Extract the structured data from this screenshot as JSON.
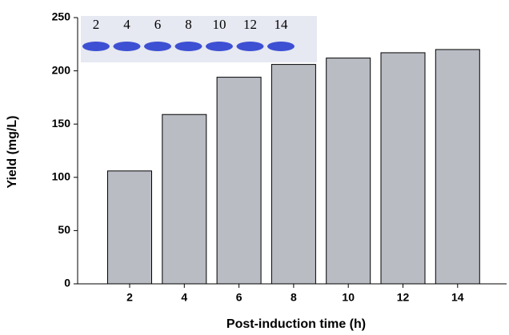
{
  "chart_data": {
    "type": "bar",
    "x_label": "Post-induction time (h)",
    "y_label": "Yield (mg/L)",
    "categories": [
      "2",
      "4",
      "6",
      "8",
      "10",
      "12",
      "14"
    ],
    "values": [
      106,
      159,
      194,
      206,
      212,
      217,
      220
    ],
    "color": "#babcc4",
    "ylim": [
      0,
      250
    ],
    "yticks": [
      0,
      50,
      100,
      150,
      200,
      250
    ],
    "inset_lane_labels": [
      "2",
      "4",
      "6",
      "8",
      "10",
      "12",
      "14"
    ]
  }
}
